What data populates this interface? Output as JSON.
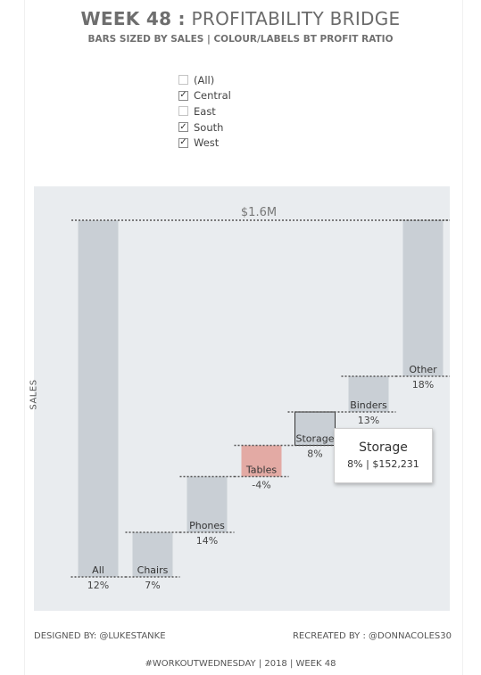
{
  "header": {
    "title_bold": "WEEK 48 :",
    "title_rest": " PROFITABILITY BRIDGE",
    "subtitle": "BARS SIZED BY SALES | COLOUR/LABELS BT PROFIT RATIO"
  },
  "filter": {
    "items": [
      {
        "label": "(All)",
        "checked": false
      },
      {
        "label": "Central",
        "checked": true
      },
      {
        "label": "East",
        "checked": false
      },
      {
        "label": "South",
        "checked": true
      },
      {
        "label": "West",
        "checked": true
      }
    ]
  },
  "chart_data": {
    "type": "bar",
    "subtype": "waterfall",
    "ylabel": "SALES",
    "total_label": "$1.6M",
    "ylim": [
      0,
      1.6
    ],
    "categories": [
      "All",
      "Chairs",
      "Phones",
      "Tables",
      "Storage",
      "Binders",
      "Other"
    ],
    "ratio_labels": [
      "12%",
      "7%",
      "14%",
      "-4%",
      "8%",
      "13%",
      "18%"
    ],
    "ratios": [
      12,
      7,
      14,
      -4,
      8,
      13,
      18
    ],
    "ranges": [
      [
        0,
        1.6
      ],
      [
        0,
        0.2
      ],
      [
        0.2,
        0.45
      ],
      [
        0.45,
        0.59
      ],
      [
        0.59,
        0.74
      ],
      [
        0.74,
        0.9
      ],
      [
        0.9,
        1.6
      ]
    ],
    "highlighted": "Storage",
    "colors": {
      "bar": "#c9cfd5",
      "negative": "#e3aaa4",
      "plot_bg": "#e9ecef",
      "dotted": "#555555"
    }
  },
  "tooltip": {
    "title": "Storage",
    "body": "8% | $152,231"
  },
  "footer": {
    "designed": "DESIGNED BY: @LUKESTANKE",
    "recreated": "RECREATED BY : @DONNACOLES30",
    "hashtag": "#WORKOUTWEDNESDAY | 2018 | WEEK 48"
  }
}
